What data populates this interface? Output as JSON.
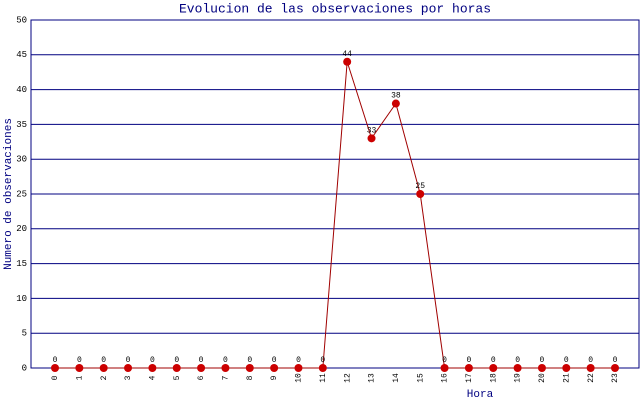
{
  "chart_data": {
    "type": "line",
    "title": "Evolucion de las observaciones por horas",
    "x_label": "Hora",
    "y_label": "Numero de observaciones",
    "categories": [
      "0",
      "1",
      "2",
      "3",
      "4",
      "5",
      "6",
      "7",
      "8",
      "9",
      "10",
      "11",
      "12",
      "13",
      "14",
      "15",
      "16",
      "17",
      "18",
      "19",
      "20",
      "21",
      "22",
      "23"
    ],
    "values": [
      0,
      0,
      0,
      0,
      0,
      0,
      0,
      0,
      0,
      0,
      0,
      0,
      44,
      33,
      38,
      25,
      0,
      0,
      0,
      0,
      0,
      0,
      0,
      0
    ],
    "color": "#a00000",
    "marker_color": "#cc0000",
    "ylim": [
      0,
      50
    ],
    "yticks": [
      0,
      5,
      10,
      15,
      20,
      25,
      30,
      35,
      40,
      45,
      50
    ],
    "grid": true
  }
}
